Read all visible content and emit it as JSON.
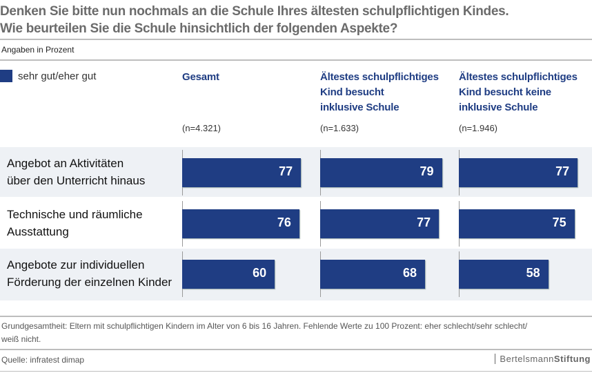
{
  "title_lines": [
    "Denken Sie bitte nun nochmals an die Schule Ihres ältesten schulpflichtigen Kindes.",
    "Wie beurteilen Sie die Schule hinsichtlich der folgenden Aspekte?"
  ],
  "subtitle": "Angaben in Prozent",
  "legend": "sehr gut/eher gut",
  "colors": {
    "bar": "#1f3d83",
    "band": "#eef1f5",
    "title": "#6b6b6b"
  },
  "chart_data": {
    "type": "bar",
    "orientation": "horizontal",
    "xlim": [
      0,
      100
    ],
    "categories": [
      "Angebot an Aktivitäten über den Unterricht hinaus",
      "Technische und räumliche Ausstattung",
      "Angebote zur individuellen Förderung der einzelnen Kinder"
    ],
    "category_lines": [
      [
        "Angebot an Aktivitäten",
        "über den Unterricht hinaus"
      ],
      [
        "Technische und räumliche",
        "Ausstattung"
      ],
      [
        "Angebote zur individuellen",
        "Förderung der einzelnen Kinder"
      ]
    ],
    "series": [
      {
        "name": "Gesamt",
        "header_lines": [
          "Gesamt"
        ],
        "n": "(n=4.321)",
        "values": [
          77,
          76,
          60
        ]
      },
      {
        "name": "Ältestes schulpflichtiges Kind besucht inklusive Schule",
        "header_lines": [
          "Ältestes schulpflichtiges",
          "Kind besucht",
          "inklusive Schule"
        ],
        "n": "(n=1.633)",
        "values": [
          79,
          77,
          68
        ]
      },
      {
        "name": "Ältestes schulpflichtiges Kind besucht keine inklusive Schule",
        "header_lines": [
          "Ältestes schulpflichtiges",
          "Kind besucht keine",
          "inklusive Schule"
        ],
        "n": "(n=1.946)",
        "values": [
          77,
          75,
          58
        ]
      }
    ]
  },
  "footnote_lines": [
    "Grundgesamtheit: Eltern mit schulpflichtigen Kindern im Alter von 6 bis 16 Jahren. Fehlende Werte zu 100 Prozent: eher schlecht/sehr schlecht/",
    "weiß nicht."
  ],
  "source": "Quelle: infratest dimap",
  "logo": "BertelsmannStiftung"
}
